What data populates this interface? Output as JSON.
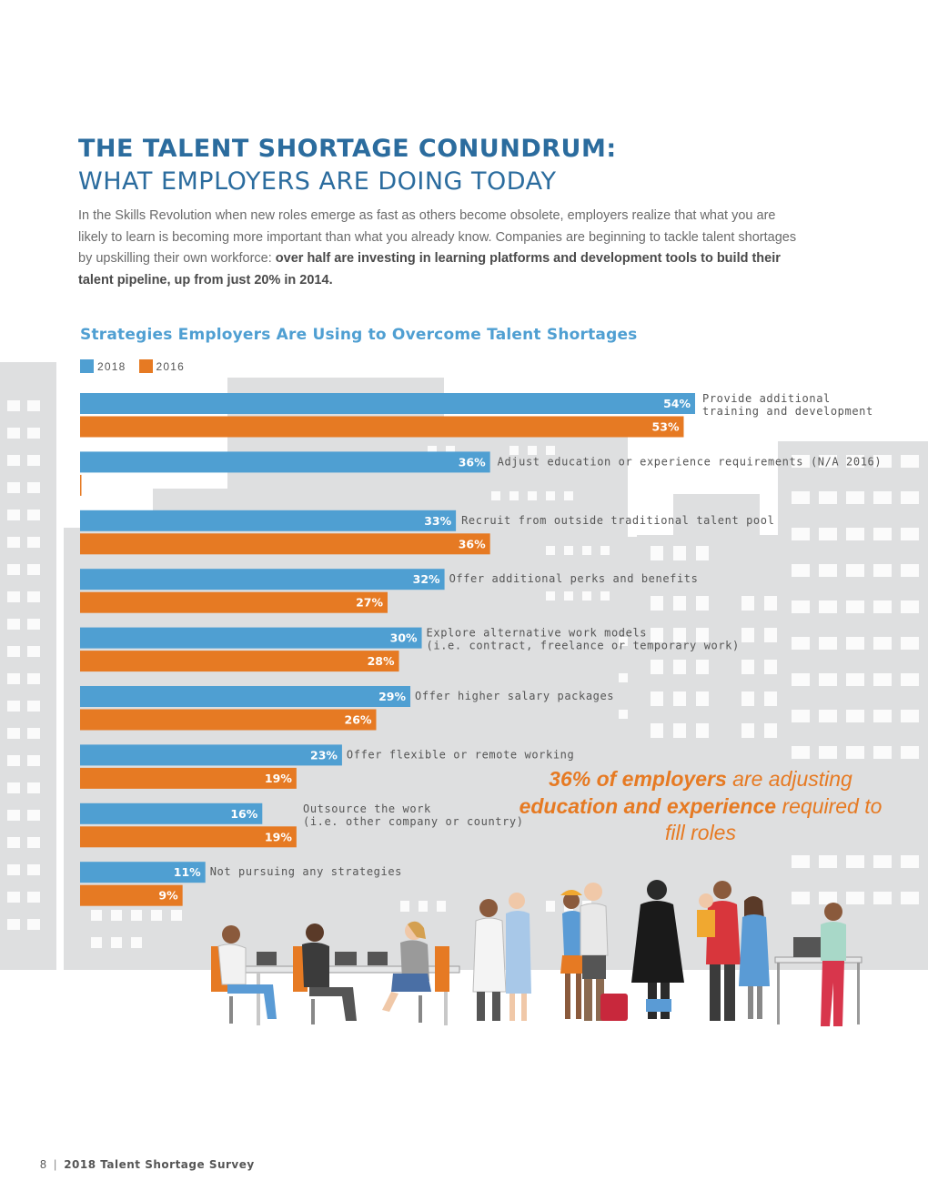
{
  "title_line1": "THE TALENT SHORTAGE CONUNDRUM:",
  "title_line2": "WHAT EMPLOYERS ARE DOING TODAY",
  "intro_text": "In the Skills Revolution when new roles emerge as fast as others become obsolete, employers realize that what you are likely to learn is becoming more important than what you already know. Companies are beginning to tackle talent shortages by upskilling their own workforce: ",
  "intro_bold": "over half are investing in learning platforms and development tools to build their talent pipeline, up from just 20% in 2014.",
  "chart_data": {
    "type": "bar",
    "orientation": "horizontal",
    "title": "Strategies Employers Are Using to Overcome Talent Shortages",
    "unit": "%",
    "categories": [
      "Provide additional\ntraining and development",
      "Adjust education or experience requirements (N/A 2016)",
      "Recruit from outside traditional talent pool",
      "Offer additional perks and benefits",
      "Explore alternative work models\n(i.e. contract, freelance or temporary work)",
      "Offer higher salary packages",
      "Offer flexible or remote working",
      "Outsource the work\n(i.e. other company or country)",
      "Not pursuing any strategies"
    ],
    "series": [
      {
        "name": "2018",
        "color": "#4f9fd2",
        "values": [
          54,
          36,
          33,
          32,
          30,
          29,
          23,
          16,
          11
        ]
      },
      {
        "name": "2016",
        "color": "#e67a23",
        "values": [
          53,
          null,
          36,
          27,
          28,
          26,
          19,
          19,
          9
        ]
      }
    ],
    "xlim": [
      0,
      54
    ]
  },
  "callout": {
    "part1": "36% of employers",
    "part2": " are adjusting ",
    "part3": "education and experience",
    "part4": " required to fill roles"
  },
  "footer": {
    "page_number": "8",
    "separator": "|",
    "publication": "2018 Talent Shortage Survey"
  }
}
